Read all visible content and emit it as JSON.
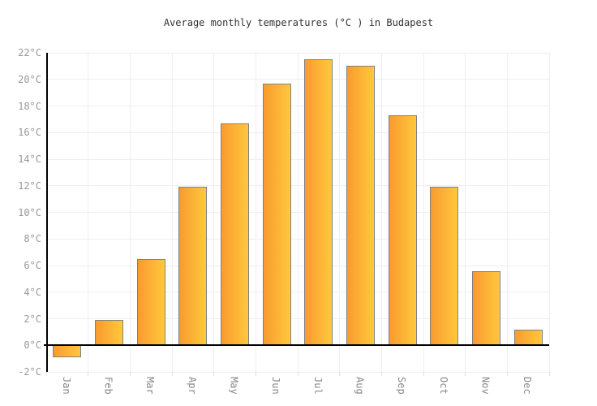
{
  "chart_data": {
    "type": "bar",
    "title": "Average monthly temperatures (°C ) in Budapest",
    "categories": [
      "Jan",
      "Feb",
      "Mar",
      "Apr",
      "May",
      "Jun",
      "Jul",
      "Aug",
      "Sep",
      "Oct",
      "Nov",
      "Dec"
    ],
    "values": [
      -0.9,
      1.9,
      6.5,
      11.9,
      16.7,
      19.7,
      21.5,
      21.0,
      17.3,
      11.9,
      5.6,
      1.2
    ],
    "unit": "°C",
    "ylim": [
      -2,
      22
    ],
    "ytick_step": 2,
    "ytick_suffix": "°C",
    "grid": true,
    "legend": "none",
    "xlabel": "",
    "ylabel": "",
    "colors": {
      "bar_gradient_left": "#f99b2e",
      "bar_gradient_right": "#ffc83d",
      "bar_border": "#808080",
      "grid": "#eeeeee",
      "axis": "#000000",
      "tick_label": "#999999",
      "title": "#333333",
      "background": "#ffffff"
    }
  }
}
